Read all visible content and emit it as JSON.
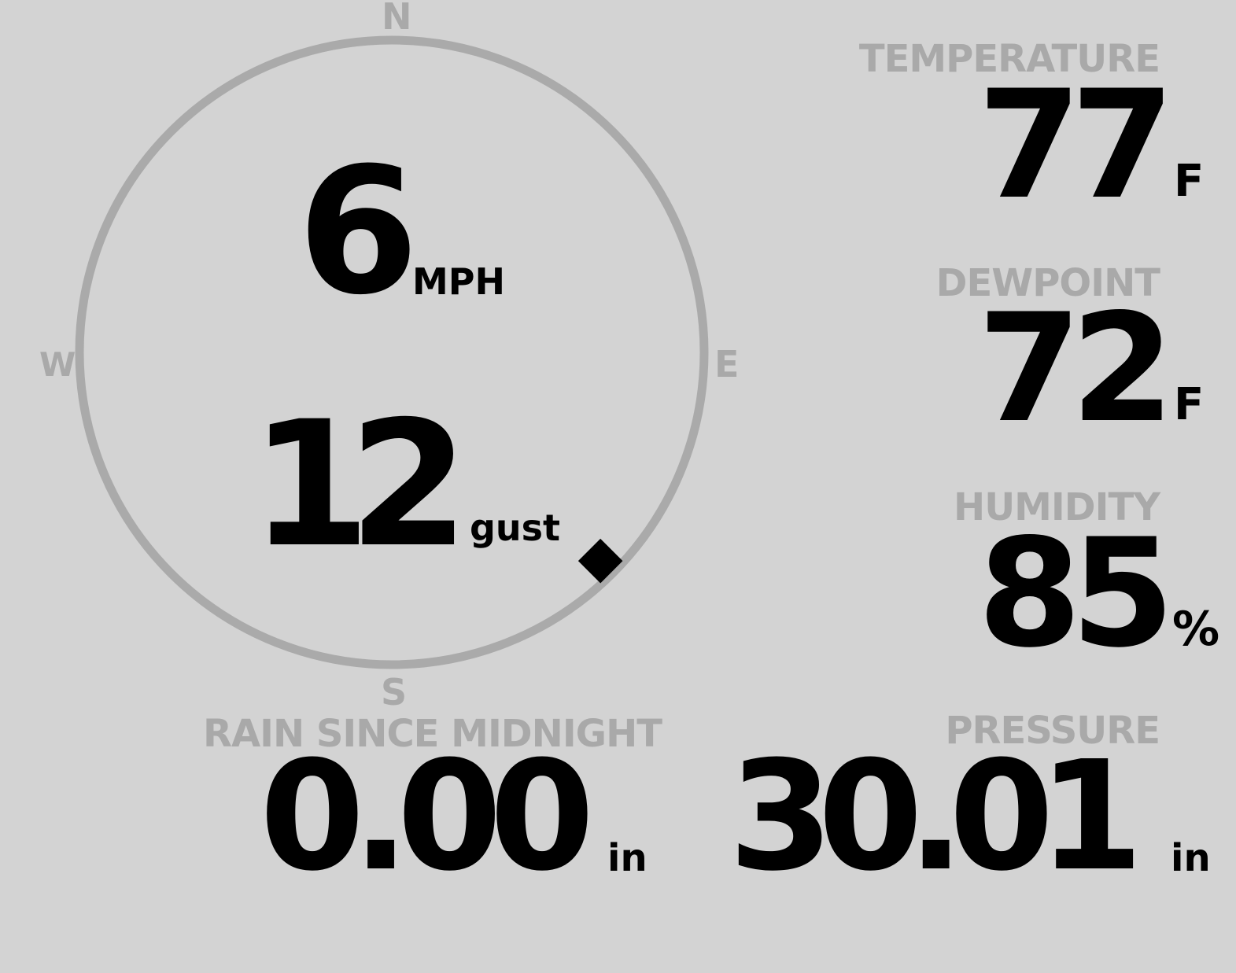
{
  "wind": {
    "speed": "6",
    "speed_unit": "MPH",
    "gust": "12",
    "gust_unit": "gust",
    "direction_degrees": 135,
    "compass": {
      "n": "N",
      "e": "E",
      "s": "S",
      "w": "W"
    }
  },
  "temperature": {
    "label": "TEMPERATURE",
    "value": "77",
    "unit": "F"
  },
  "dewpoint": {
    "label": "DEWPOINT",
    "value": "72",
    "unit": "F"
  },
  "humidity": {
    "label": "HUMIDITY",
    "value": "85",
    "unit": "%"
  },
  "rain": {
    "label": "RAIN SINCE MIDNIGHT",
    "value": "0.00",
    "unit": "in"
  },
  "pressure": {
    "label": "PRESSURE",
    "value": "30.01",
    "unit": "in"
  },
  "colors": {
    "background": "#d3d3d3",
    "label": "#a9a9a9",
    "value": "#000000",
    "dial": "#aaaaaa"
  }
}
